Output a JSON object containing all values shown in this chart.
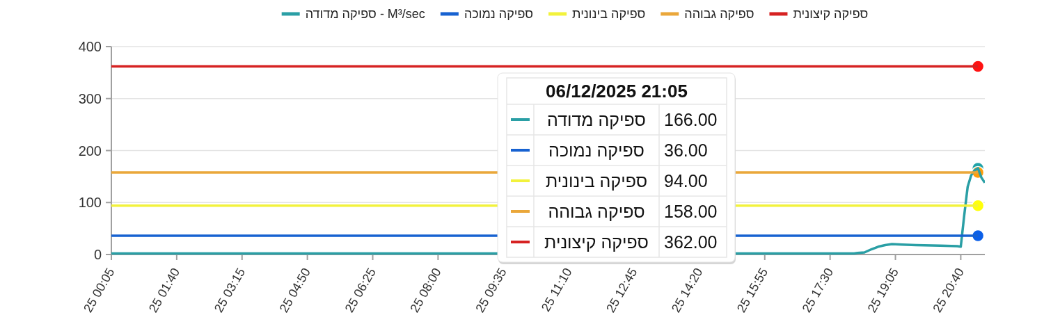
{
  "chart_data": {
    "type": "line",
    "series": [
      {
        "name": "ספיקה מדודה - M³/sec",
        "color": "#2a9fa5",
        "x": [
          "2025-12-06T00:05",
          "2025-12-06T04:00",
          "2025-12-06T08:00",
          "2025-12-06T16:00",
          "2025-12-06T18:05",
          "2025-12-06T18:10",
          "2025-12-06T18:20",
          "2025-12-06T18:30",
          "2025-12-06T18:40",
          "2025-12-06T18:50",
          "2025-12-06T19:00",
          "2025-12-06T19:15",
          "2025-12-06T19:35",
          "2025-12-06T20:10",
          "2025-12-06T20:35",
          "2025-12-06T20:40",
          "2025-12-06T20:45",
          "2025-12-06T20:50",
          "2025-12-06T20:55",
          "2025-12-06T21:00",
          "2025-12-06T21:05",
          "2025-12-06T21:10",
          "2025-12-06T21:15"
        ],
        "values": [
          2,
          2,
          2,
          2,
          2,
          3,
          4,
          10,
          15,
          18,
          20,
          19,
          18,
          17,
          16,
          15,
          75,
          130,
          152,
          162,
          166,
          148,
          138
        ]
      },
      {
        "name": "ספיקה נמוכה",
        "color": "#1762d1",
        "x": [
          "2025-12-06T00:05",
          "2025-12-06T21:05"
        ],
        "values": [
          36,
          36
        ]
      },
      {
        "name": "ספיקה בינונית",
        "color": "#f2f23c",
        "x": [
          "2025-12-06T00:05",
          "2025-12-06T21:05"
        ],
        "values": [
          94,
          94
        ]
      },
      {
        "name": "ספיקה גבוהה",
        "color": "#eaa73a",
        "x": [
          "2025-12-06T00:05",
          "2025-12-06T21:05"
        ],
        "values": [
          158,
          158
        ]
      },
      {
        "name": "ספיקה קיצונית",
        "color": "#d62222",
        "x": [
          "2025-12-06T00:05",
          "2025-12-06T21:05"
        ],
        "values": [
          362,
          362
        ]
      },
      {
        "type": "scatter",
        "marker": "circle",
        "x": [
          "2025-12-06T21:05",
          "2025-12-06T21:05",
          "2025-12-06T21:05",
          "2025-12-06T21:05",
          "2025-12-06T21:05"
        ],
        "values": [
          166,
          36,
          94,
          158,
          362
        ],
        "colors": [
          "#21a3a8",
          "#0b5fe8",
          "#ffff0a",
          "#ff9d0a",
          "#ff1212"
        ]
      }
    ],
    "xlim": [
      "2025-12-06T00:05",
      "2025-12-06T21:15"
    ],
    "xticks": [
      {
        "value": "2025-12-06T00:05",
        "label": "25 00:05"
      },
      {
        "value": "2025-12-06T01:40",
        "label": "25 01:40"
      },
      {
        "value": "2025-12-06T03:15",
        "label": "25 03:15"
      },
      {
        "value": "2025-12-06T04:50",
        "label": "25 04:50"
      },
      {
        "value": "2025-12-06T06:25",
        "label": "25 06:25"
      },
      {
        "value": "2025-12-06T08:00",
        "label": "25 08:00"
      },
      {
        "value": "2025-12-06T09:35",
        "label": "25 09:35"
      },
      {
        "value": "2025-12-06T11:10",
        "label": "25 11:10"
      },
      {
        "value": "2025-12-06T12:45",
        "label": "25 12:45"
      },
      {
        "value": "2025-12-06T14:20",
        "label": "25 14:20"
      },
      {
        "value": "2025-12-06T15:55",
        "label": "25 15:55"
      },
      {
        "value": "2025-12-06T17:30",
        "label": "25 17:30"
      },
      {
        "value": "2025-12-06T19:05",
        "label": "25 19:05"
      },
      {
        "value": "2025-12-06T20:40",
        "label": "25 20:40"
      }
    ],
    "ylim": [
      0,
      400
    ],
    "yticks": [
      0,
      100,
      200,
      300,
      400
    ],
    "grid": "y",
    "legend": "top",
    "annotations": [
      "06/12/2025 21:05",
      "ספיקה מדודה",
      "166.00",
      "ספיקה נמוכה",
      "36.00",
      "ספיקה בינונית",
      "94.00",
      "ספיקה גבוהה",
      "158.00",
      "ספיקה קיצונית",
      "362.00"
    ]
  }
}
